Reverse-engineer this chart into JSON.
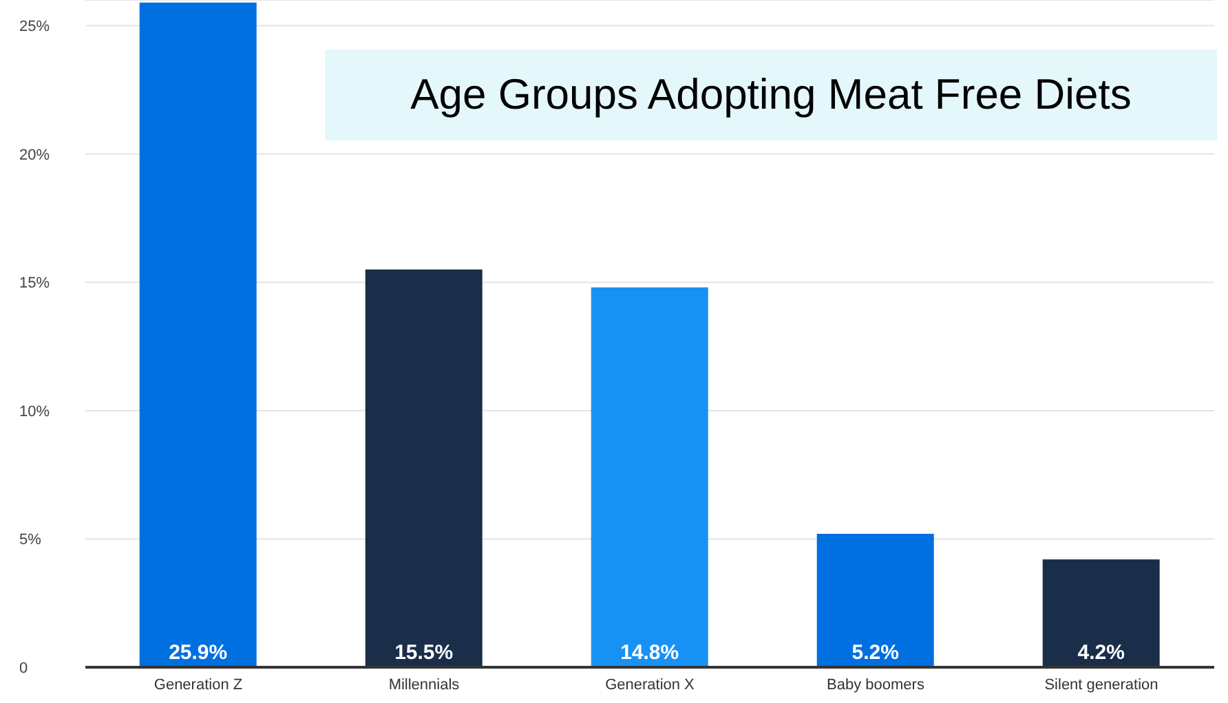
{
  "chart_data": {
    "type": "bar",
    "title": "Age Groups Adopting Meat Free Diets",
    "categories": [
      "Generation Z",
      "Millennials",
      "Generation X",
      "Baby boomers",
      "Silent generation"
    ],
    "values": [
      25.9,
      15.5,
      14.8,
      5.2,
      4.2
    ],
    "colors": [
      "#0070e0",
      "#1a2e4a",
      "#1891f5",
      "#0070e0",
      "#1a2e4a"
    ],
    "value_labels": [
      "25.9%",
      "15.5%",
      "14.8%",
      "5.2%",
      "4.2%"
    ],
    "ylim": [
      0,
      26
    ],
    "yticks": [
      0,
      {
        "value": 5,
        "label": "5%"
      },
      {
        "value": 10,
        "label": "10%"
      },
      {
        "value": 15,
        "label": "15%"
      },
      {
        "value": 20,
        "label": "20%"
      },
      {
        "value": 25,
        "label": "25%"
      }
    ],
    "grid": "y"
  }
}
